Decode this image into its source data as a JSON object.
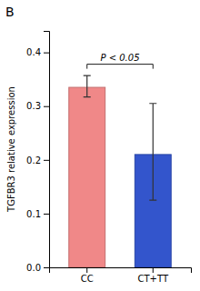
{
  "chart_data": {
    "type": "bar",
    "title": "B",
    "categories": [
      "CC",
      "CT+TT"
    ],
    "values": [
      0.335,
      0.21
    ],
    "errors_upper": [
      0.022,
      0.095
    ],
    "errors_lower": [
      0.018,
      0.085
    ],
    "colors": [
      "#F08888",
      "#3355CC"
    ],
    "ylabel": "TGFBR3 relative expression",
    "ylim": [
      0.0,
      0.44
    ],
    "yticks": [
      {
        "value": 0.0,
        "label": "0.0"
      },
      0.1,
      0.2,
      0.3,
      0.4
    ],
    "grid": false,
    "annotations": [
      {
        "text": "P < 0.05",
        "between": [
          "CC",
          "CT+TT"
        ],
        "y": 0.378
      }
    ]
  }
}
